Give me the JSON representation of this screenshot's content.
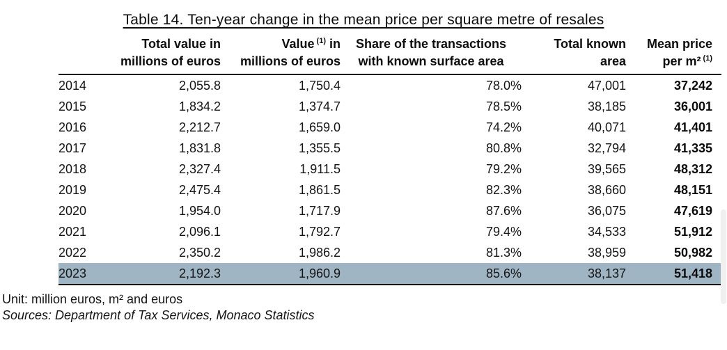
{
  "title": "Table 14. Ten-year change in the mean price per square metre of resales",
  "headers": {
    "total_value": [
      "Total value in",
      "millions of euros"
    ],
    "value": {
      "l1_pre": "Value",
      "l1_sup": "(1)",
      "l1_post": " in",
      "l2": "millions of euros"
    },
    "share": [
      "Share of the transactions",
      "with known surface area"
    ],
    "area": [
      "Total known",
      "area"
    ],
    "mean_price": {
      "l1": "Mean price",
      "l2_pre": "per m²",
      "l2_sup": "(1)"
    }
  },
  "rows": [
    {
      "year": "2014",
      "total_value": "2,055.8",
      "value": "1,750.4",
      "share": "78.0%",
      "area": "47,001",
      "mean_price": "37,242"
    },
    {
      "year": "2015",
      "total_value": "1,834.2",
      "value": "1,374.7",
      "share": "78.5%",
      "area": "38,185",
      "mean_price": "36,001"
    },
    {
      "year": "2016",
      "total_value": "2,212.7",
      "value": "1,659.0",
      "share": "74.2%",
      "area": "40,071",
      "mean_price": "41,401"
    },
    {
      "year": "2017",
      "total_value": "1,831.8",
      "value": "1,355.5",
      "share": "80.8%",
      "area": "32,794",
      "mean_price": "41,335"
    },
    {
      "year": "2018",
      "total_value": "2,327.4",
      "value": "1,911.5",
      "share": "79.2%",
      "area": "39,565",
      "mean_price": "48,312"
    },
    {
      "year": "2019",
      "total_value": "2,475.4",
      "value": "1,861.5",
      "share": "82.3%",
      "area": "38,660",
      "mean_price": "48,151"
    },
    {
      "year": "2020",
      "total_value": "1,954.0",
      "value": "1,717.9",
      "share": "87.6%",
      "area": "36,075",
      "mean_price": "47,619"
    },
    {
      "year": "2021",
      "total_value": "2,096.1",
      "value": "1,792.7",
      "share": "79.4%",
      "area": "34,533",
      "mean_price": "51,912"
    },
    {
      "year": "2022",
      "total_value": "2,350.2",
      "value": "1,986.2",
      "share": "81.3%",
      "area": "38,959",
      "mean_price": "50,982"
    },
    {
      "year": "2023",
      "total_value": "2,192.3",
      "value": "1,960.9",
      "share": "85.6%",
      "area": "38,137",
      "mean_price": "51,418"
    }
  ],
  "highlighted_year": "2023",
  "footer": {
    "unit": "Unit: million euros, m² and euros",
    "sources": "Sources: Department of Tax Services, Monaco Statistics"
  },
  "colors": {
    "highlight_row": "#a0b5c3",
    "rule": "#000000"
  }
}
